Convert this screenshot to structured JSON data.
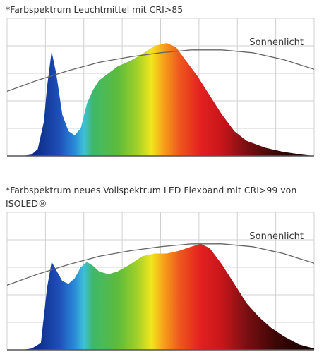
{
  "chart_data": [
    {
      "type": "area",
      "title": "*Farbspektrum Leuchtmittel mit CRI>85",
      "x": [
        0,
        5,
        8,
        10,
        12,
        13,
        14.5,
        16,
        18,
        20,
        22,
        24,
        26,
        28,
        30,
        33,
        36,
        40,
        44,
        48,
        52,
        55,
        58,
        62,
        66,
        70,
        74,
        78,
        84,
        90,
        96,
        100
      ],
      "values": [
        0,
        0,
        1,
        5,
        25,
        50,
        76,
        60,
        30,
        18,
        15,
        20,
        38,
        48,
        55,
        60,
        65,
        69,
        74,
        80,
        82,
        79,
        70,
        58,
        44,
        30,
        18,
        11,
        6,
        3,
        1,
        0
      ],
      "series": [
        {
          "name": "Sonnenlicht",
          "color": "#666666",
          "x": [
            0,
            10,
            20,
            30,
            40,
            50,
            60,
            70,
            80,
            90,
            100
          ],
          "values": [
            47,
            55,
            62,
            68,
            72,
            75,
            77,
            77,
            75,
            70,
            63
          ]
        }
      ],
      "xlim": [
        0,
        100
      ],
      "ylim": [
        0,
        100
      ],
      "xticks": [
        0,
        12.5,
        25,
        37.5,
        50,
        62.5,
        75,
        87.5,
        100
      ],
      "yticks": [
        0,
        20,
        40,
        60,
        80,
        100
      ],
      "grid": true
    },
    {
      "type": "area",
      "title": "*Farbspektrum neues Vollspektrum LED Flexband mit CRI>99 von ISOLED®",
      "x": [
        0,
        5,
        8,
        11,
        13,
        14.5,
        16,
        18,
        20,
        22,
        24,
        26,
        28,
        30,
        33,
        36,
        40,
        44,
        48,
        52,
        56,
        60,
        63,
        66,
        70,
        74,
        78,
        82,
        86,
        90,
        95,
        100
      ],
      "values": [
        0,
        0,
        1,
        5,
        45,
        64,
        58,
        50,
        48,
        52,
        60,
        64,
        61,
        57,
        55,
        57,
        62,
        68,
        70,
        70,
        72,
        75,
        77,
        74,
        62,
        48,
        34,
        24,
        16,
        10,
        4,
        1
      ],
      "series": [
        {
          "name": "Sonnenlicht",
          "color": "#666666",
          "x": [
            0,
            10,
            20,
            30,
            40,
            50,
            60,
            70,
            80,
            90,
            100
          ],
          "values": [
            47,
            55,
            62,
            68,
            72,
            75,
            77,
            77,
            75,
            70,
            63
          ]
        }
      ],
      "xlim": [
        0,
        100
      ],
      "ylim": [
        0,
        100
      ],
      "xticks": [
        0,
        12.5,
        25,
        37.5,
        50,
        62.5,
        75,
        87.5,
        100
      ],
      "yticks": [
        0,
        20,
        40,
        60,
        80,
        100
      ],
      "grid": true
    }
  ]
}
